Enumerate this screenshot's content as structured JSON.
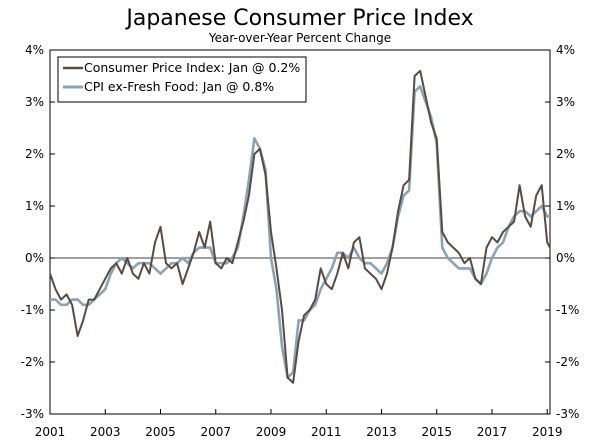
{
  "chart_data": {
    "type": "line",
    "title": "Japanese Consumer Price Index",
    "subtitle": "Year-over-Year Percent Change",
    "xlabel": "",
    "ylabel": "",
    "xlim": [
      2001.0,
      2019.1
    ],
    "ylim": [
      -3,
      4
    ],
    "y_ticks": [
      4,
      3,
      2,
      1,
      0,
      -1,
      -2,
      -3
    ],
    "y_tick_labels": [
      "4%",
      "3%",
      "2%",
      "1%",
      "0%",
      "-1%",
      "-2%",
      "-3%"
    ],
    "x_ticks": [
      2001,
      2003,
      2005,
      2007,
      2009,
      2011,
      2013,
      2015,
      2017,
      2019
    ],
    "x_tick_labels": [
      "2001",
      "2003",
      "2005",
      "2007",
      "2009",
      "2011",
      "2013",
      "2015",
      "2017",
      "2019"
    ],
    "zero_line": true,
    "legend_position": "top-left",
    "series": [
      {
        "name": "Consumer Price Index: Jan @ 0.2%",
        "color": "#5b4a3f",
        "x": [
          2001.0,
          2001.2,
          2001.4,
          2001.6,
          2001.8,
          2002.0,
          2002.2,
          2002.4,
          2002.6,
          2002.8,
          2003.0,
          2003.2,
          2003.4,
          2003.6,
          2003.8,
          2004.0,
          2004.2,
          2004.4,
          2004.6,
          2004.8,
          2005.0,
          2005.2,
          2005.4,
          2005.6,
          2005.8,
          2006.0,
          2006.2,
          2006.4,
          2006.6,
          2006.8,
          2007.0,
          2007.2,
          2007.4,
          2007.6,
          2007.8,
          2008.0,
          2008.2,
          2008.4,
          2008.6,
          2008.8,
          2009.0,
          2009.2,
          2009.4,
          2009.6,
          2009.8,
          2010.0,
          2010.2,
          2010.4,
          2010.6,
          2010.8,
          2011.0,
          2011.2,
          2011.4,
          2011.6,
          2011.8,
          2012.0,
          2012.2,
          2012.4,
          2012.6,
          2012.8,
          2013.0,
          2013.2,
          2013.4,
          2013.6,
          2013.8,
          2014.0,
          2014.2,
          2014.4,
          2014.6,
          2014.8,
          2015.0,
          2015.2,
          2015.4,
          2015.6,
          2015.8,
          2016.0,
          2016.2,
          2016.4,
          2016.6,
          2016.8,
          2017.0,
          2017.2,
          2017.4,
          2017.6,
          2017.8,
          2018.0,
          2018.2,
          2018.4,
          2018.6,
          2018.8,
          2019.0,
          2019.1
        ],
        "values": [
          -0.3,
          -0.6,
          -0.8,
          -0.7,
          -0.9,
          -1.5,
          -1.2,
          -0.8,
          -0.8,
          -0.6,
          -0.4,
          -0.2,
          -0.1,
          -0.3,
          0.0,
          -0.3,
          -0.4,
          -0.1,
          -0.3,
          0.3,
          0.6,
          -0.1,
          -0.2,
          -0.1,
          -0.5,
          -0.2,
          0.1,
          0.5,
          0.2,
          0.7,
          -0.1,
          -0.2,
          0.0,
          -0.1,
          0.3,
          0.7,
          1.2,
          2.0,
          2.1,
          1.6,
          0.5,
          -0.2,
          -1.0,
          -2.3,
          -2.4,
          -1.6,
          -1.1,
          -1.0,
          -0.8,
          -0.2,
          -0.5,
          -0.6,
          -0.3,
          0.1,
          -0.2,
          0.3,
          0.4,
          -0.2,
          -0.3,
          -0.4,
          -0.6,
          -0.3,
          0.2,
          0.9,
          1.4,
          1.5,
          3.5,
          3.6,
          3.1,
          2.6,
          2.3,
          0.5,
          0.3,
          0.2,
          0.1,
          -0.1,
          0.0,
          -0.4,
          -0.5,
          0.2,
          0.4,
          0.3,
          0.5,
          0.6,
          0.7,
          1.4,
          0.8,
          0.6,
          1.2,
          1.4,
          0.3,
          0.2
        ]
      },
      {
        "name": "CPI ex-Fresh Food: Jan @ 0.8%",
        "color": "#87a3b7",
        "x": [
          2001.0,
          2001.2,
          2001.4,
          2001.6,
          2001.8,
          2002.0,
          2002.2,
          2002.4,
          2002.6,
          2002.8,
          2003.0,
          2003.2,
          2003.4,
          2003.6,
          2003.8,
          2004.0,
          2004.2,
          2004.4,
          2004.6,
          2004.8,
          2005.0,
          2005.2,
          2005.4,
          2005.6,
          2005.8,
          2006.0,
          2006.2,
          2006.4,
          2006.6,
          2006.8,
          2007.0,
          2007.2,
          2007.4,
          2007.6,
          2007.8,
          2008.0,
          2008.2,
          2008.4,
          2008.6,
          2008.8,
          2009.0,
          2009.2,
          2009.4,
          2009.6,
          2009.8,
          2010.0,
          2010.2,
          2010.4,
          2010.6,
          2010.8,
          2011.0,
          2011.2,
          2011.4,
          2011.6,
          2011.8,
          2012.0,
          2012.2,
          2012.4,
          2012.6,
          2012.8,
          2013.0,
          2013.2,
          2013.4,
          2013.6,
          2013.8,
          2014.0,
          2014.2,
          2014.4,
          2014.6,
          2014.8,
          2015.0,
          2015.2,
          2015.4,
          2015.6,
          2015.8,
          2016.0,
          2016.2,
          2016.4,
          2016.6,
          2016.8,
          2017.0,
          2017.2,
          2017.4,
          2017.6,
          2017.8,
          2018.0,
          2018.2,
          2018.4,
          2018.6,
          2018.8,
          2019.0,
          2019.1
        ],
        "values": [
          -0.8,
          -0.8,
          -0.9,
          -0.9,
          -0.8,
          -0.8,
          -0.9,
          -0.9,
          -0.8,
          -0.7,
          -0.6,
          -0.3,
          -0.1,
          0.0,
          -0.1,
          -0.2,
          -0.1,
          -0.1,
          -0.1,
          -0.2,
          -0.3,
          -0.2,
          -0.1,
          -0.1,
          0.0,
          -0.1,
          0.1,
          0.2,
          0.2,
          0.2,
          -0.1,
          -0.1,
          -0.1,
          0.0,
          0.2,
          0.8,
          1.5,
          2.3,
          2.1,
          1.7,
          0.0,
          -0.6,
          -1.7,
          -2.3,
          -2.2,
          -1.2,
          -1.2,
          -1.0,
          -0.9,
          -0.6,
          -0.4,
          -0.2,
          0.1,
          0.1,
          0.0,
          0.2,
          0.0,
          -0.1,
          -0.1,
          -0.2,
          -0.3,
          -0.1,
          0.2,
          0.8,
          1.2,
          1.3,
          3.2,
          3.3,
          3.0,
          2.7,
          2.2,
          0.2,
          0.0,
          -0.1,
          -0.2,
          -0.2,
          -0.2,
          -0.4,
          -0.5,
          -0.3,
          0.0,
          0.2,
          0.3,
          0.6,
          0.8,
          0.9,
          0.9,
          0.8,
          0.9,
          1.0,
          0.8,
          0.8
        ]
      }
    ]
  }
}
